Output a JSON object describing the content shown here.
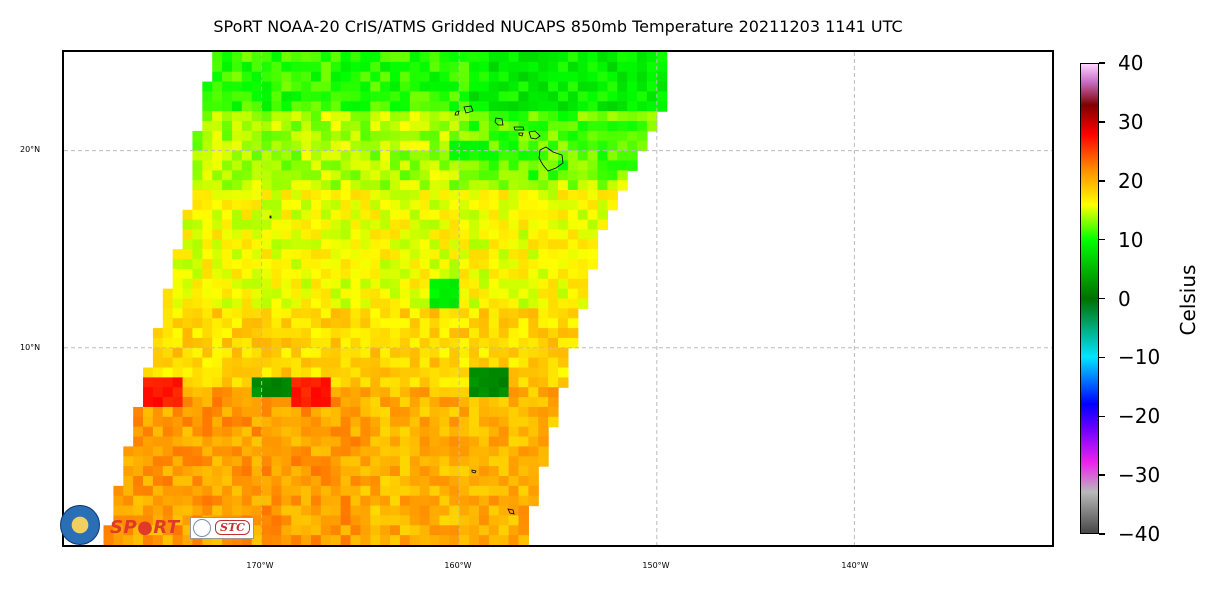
{
  "title": "SPoRT NOAA-20 CrIS/ATMS Gridded NUCAPS 850mb Temperature 20211203 1141 UTC",
  "chart_data": {
    "type": "heatmap",
    "title": "SPoRT NOAA-20 CrIS/ATMS Gridded NUCAPS 850mb Temperature 20211203 1141 UTC",
    "variable": "850mb Temperature",
    "units": "Celsius",
    "lon_range": [
      -180,
      -130
    ],
    "lat_range": [
      0,
      25
    ],
    "grid": true,
    "gridlines_lon": [
      -170,
      -160,
      -150,
      -140
    ],
    "gridlines_lat": [
      10,
      20
    ],
    "swath_edges": [
      {
        "lat": 25,
        "west": -172.5,
        "east": -149.5
      },
      {
        "lat": 22,
        "west": -173,
        "east": -150
      },
      {
        "lat": 20,
        "west": -173.5,
        "east": -151
      },
      {
        "lat": 18,
        "west": -173.5,
        "east": -152
      },
      {
        "lat": 16,
        "west": -174,
        "east": -153
      },
      {
        "lat": 14,
        "west": -174.5,
        "east": -153.5
      },
      {
        "lat": 12,
        "west": -175,
        "east": -154
      },
      {
        "lat": 10,
        "west": -175.5,
        "east": -154.5
      },
      {
        "lat": 8,
        "west": -176,
        "east": -155
      },
      {
        "lat": 6,
        "west": -176.5,
        "east": -155.5
      },
      {
        "lat": 4,
        "west": -177,
        "east": -156
      },
      {
        "lat": 2,
        "west": -177.5,
        "east": -156.5
      },
      {
        "lat": 0,
        "west": -178,
        "east": -156.5
      }
    ],
    "temperature_zones": [
      {
        "lat_min": 22,
        "lat_max": 25,
        "typical_c": 11
      },
      {
        "lat_min": 18,
        "lat_max": 22,
        "typical_c": 14
      },
      {
        "lat_min": 12,
        "lat_max": 18,
        "typical_c": 16
      },
      {
        "lat_min": 8,
        "lat_max": 12,
        "typical_c": 18
      },
      {
        "lat_min": 0,
        "lat_max": 8,
        "typical_c": 20
      }
    ],
    "anomalies": [
      {
        "lon": -169.5,
        "lat": 8,
        "value_c": 2
      },
      {
        "lon": -158.5,
        "lat": 8.2,
        "value_c": 2
      },
      {
        "lon": -175,
        "lat": 7.7,
        "value_c": 27
      },
      {
        "lon": -167.5,
        "lat": 7.7,
        "value_c": 27
      },
      {
        "lon": -159.5,
        "lat": 20,
        "value_c": 10
      },
      {
        "lon": -160.8,
        "lat": 12.7,
        "value_c": 9
      }
    ],
    "colorbar": {
      "label": "Celsius",
      "min": -40,
      "max": 40,
      "ticks": [
        40,
        30,
        20,
        10,
        0,
        -10,
        -20,
        -30,
        -40
      ],
      "tick_labels": [
        "40",
        "30",
        "20",
        "10",
        "0",
        "−10",
        "−20",
        "−30",
        "−40"
      ],
      "stops": [
        {
          "value": -40,
          "color": "#474747"
        },
        {
          "value": -33,
          "color": "#b9b9b9"
        },
        {
          "value": -28,
          "color": "#ee22ee"
        },
        {
          "value": -22,
          "color": "#6600ff"
        },
        {
          "value": -18,
          "color": "#0000ff"
        },
        {
          "value": -10,
          "color": "#00e5ff"
        },
        {
          "value": -4,
          "color": "#00a060"
        },
        {
          "value": 0,
          "color": "#007000"
        },
        {
          "value": 10,
          "color": "#00ff00"
        },
        {
          "value": 16,
          "color": "#ffff00"
        },
        {
          "value": 22,
          "color": "#ff8c00"
        },
        {
          "value": 28,
          "color": "#ff0000"
        },
        {
          "value": 33,
          "color": "#800000"
        },
        {
          "value": 37,
          "color": "#c870c8"
        },
        {
          "value": 40,
          "color": "#ffd6ff"
        }
      ]
    }
  },
  "axes": {
    "lat_labels": [
      {
        "lat": 20,
        "text": "20°N"
      },
      {
        "lat": 10,
        "text": "10°N"
      }
    ],
    "lon_labels": [
      {
        "lon": -170,
        "text": "170°W"
      },
      {
        "lon": -160,
        "text": "160°W"
      },
      {
        "lon": -150,
        "text": "150°W"
      },
      {
        "lon": -140,
        "text": "140°W"
      }
    ]
  },
  "logos": {
    "sport": "SP●RT",
    "stc": "STC"
  },
  "colors": {
    "gridline": "#bbbbbb",
    "coastline": "#000000"
  }
}
